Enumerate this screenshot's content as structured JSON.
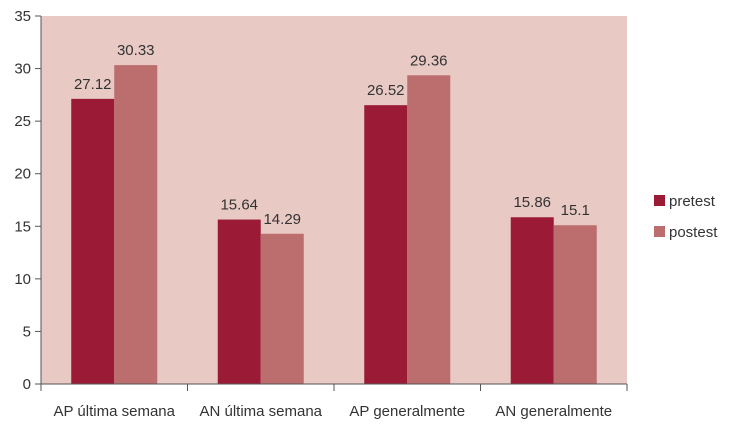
{
  "chart_data": {
    "type": "bar",
    "categories": [
      "AP última semana",
      "AN última semana",
      "AP generalmente",
      "AN generalmente"
    ],
    "series": [
      {
        "name": "pretest",
        "values": [
          27.12,
          15.64,
          26.52,
          15.86
        ],
        "color": "#9b1b37"
      },
      {
        "name": "postest",
        "values": [
          30.33,
          14.29,
          29.36,
          15.1
        ],
        "color": "#bc6e6e"
      }
    ],
    "data_labels": [
      [
        "27.12",
        "15.64",
        "26.52",
        "15.86"
      ],
      [
        "30.33",
        "14.29",
        "29.36",
        "15.1"
      ]
    ],
    "ylim": [
      0,
      35
    ],
    "yticks": [
      0,
      5,
      10,
      15,
      20,
      25,
      30,
      35
    ],
    "grid": false,
    "legend_position": "right",
    "plot_background": "#e8c9c4"
  }
}
